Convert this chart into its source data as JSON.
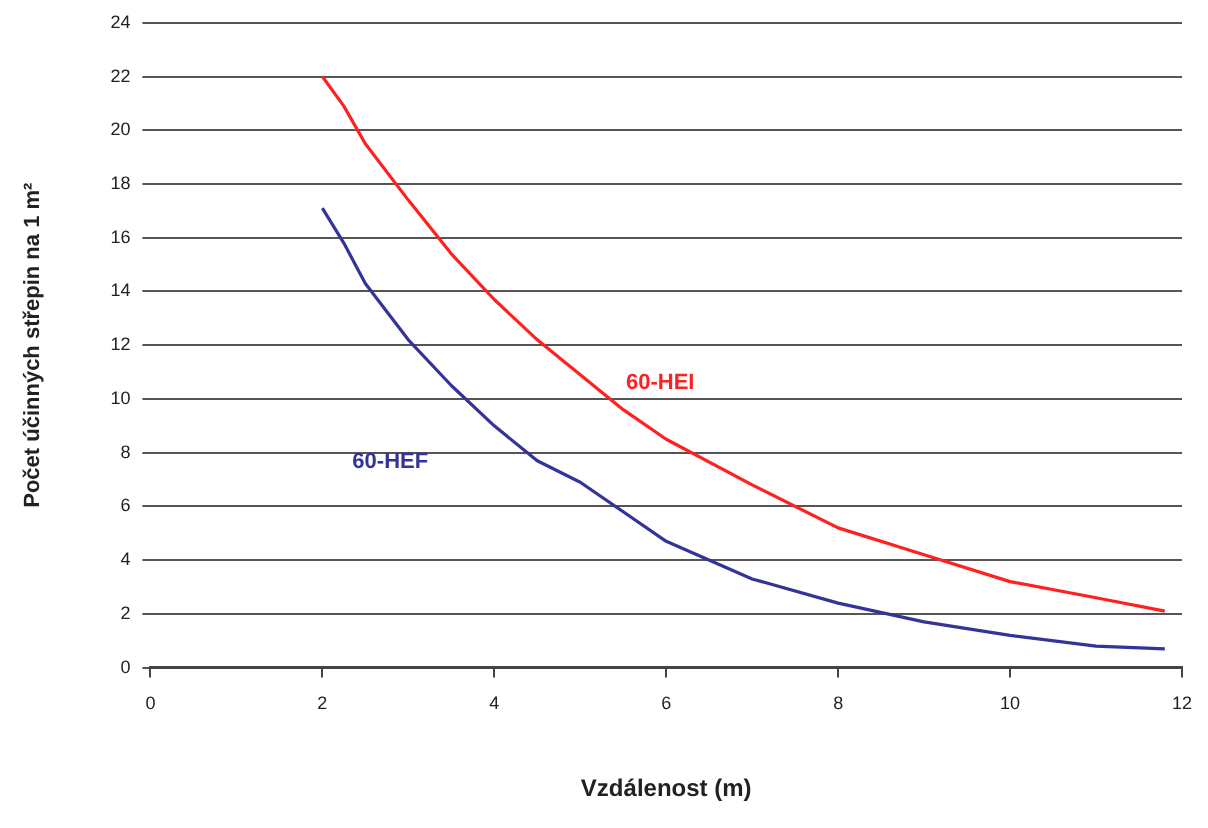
{
  "chart_data": {
    "type": "line",
    "xlabel": "Vzdálenost (m)",
    "ylabel": "Počet účinných střepin na 1 m²",
    "xlim": [
      0,
      12
    ],
    "xticks": [
      0,
      2,
      4,
      6,
      8,
      10,
      12
    ],
    "ylim": [
      0,
      24
    ],
    "yticks": [
      0,
      2,
      4,
      6,
      8,
      10,
      12,
      14,
      16,
      18,
      20,
      22,
      24
    ],
    "grid": "y",
    "legend": false,
    "marker": "none",
    "line_style": "solid",
    "series": [
      {
        "name": "60-HEI",
        "color": "#ff2020",
        "x": [
          2,
          2.25,
          2.5,
          3,
          3.5,
          4,
          4.5,
          5,
          5.5,
          6,
          7,
          8,
          9,
          10,
          11,
          11.8
        ],
        "values": [
          22,
          20.9,
          19.5,
          17.4,
          15.4,
          13.7,
          12.2,
          10.9,
          9.6,
          8.5,
          6.8,
          5.2,
          4.2,
          3.2,
          2.6,
          2.1
        ]
      },
      {
        "name": "60-HEF",
        "color": "#333399",
        "x": [
          2,
          2.25,
          2.5,
          3,
          3.5,
          4,
          4.5,
          5,
          5.5,
          6,
          7,
          8,
          9,
          10,
          11,
          11.8
        ],
        "values": [
          17.1,
          15.8,
          14.3,
          12.2,
          10.5,
          9,
          7.7,
          6.9,
          5.8,
          4.7,
          3.3,
          2.4,
          1.7,
          1.2,
          0.8,
          0.7
        ]
      }
    ]
  }
}
